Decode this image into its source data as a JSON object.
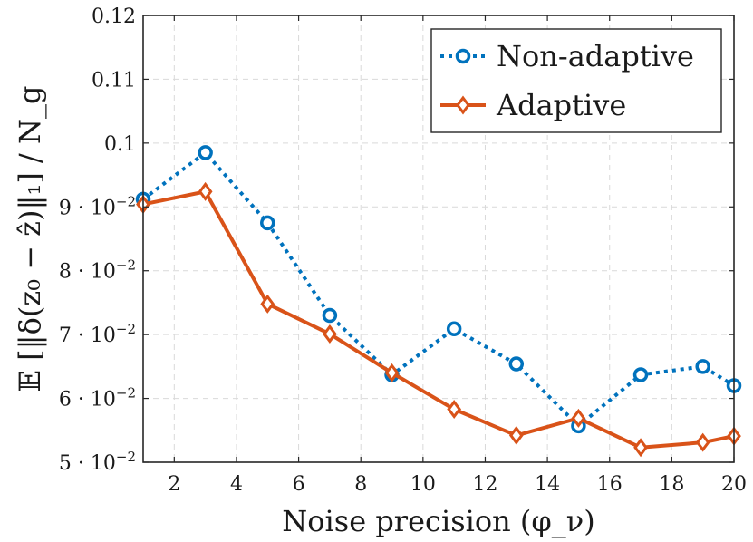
{
  "chart_data": {
    "type": "line",
    "title": "",
    "xlabel": "Noise precision (φ_ν)",
    "ylabel": "𝔼 [‖δ(z₀ − ẑ)‖₁] / N_g",
    "xlim": [
      1,
      20
    ],
    "ylim": [
      0.05,
      0.12
    ],
    "x_ticks": [
      2,
      4,
      6,
      8,
      10,
      12,
      14,
      16,
      18,
      20
    ],
    "y_ticks": [
      {
        "value": 0.05,
        "mantissa": "5",
        "exp": "−2"
      },
      {
        "value": 0.06,
        "mantissa": "6",
        "exp": "−2"
      },
      {
        "value": 0.07,
        "mantissa": "7",
        "exp": "−2"
      },
      {
        "value": 0.08,
        "mantissa": "8",
        "exp": "−2"
      },
      {
        "value": 0.09,
        "mantissa": "9",
        "exp": "−2"
      },
      {
        "value": 0.1,
        "label": "0.1"
      },
      {
        "value": 0.11,
        "label": "0.11"
      },
      {
        "value": 0.12,
        "label": "0.12"
      }
    ],
    "grid": true,
    "legend_position": "top-right",
    "series": [
      {
        "name": "Non-adaptive",
        "color": "#0072bd",
        "line_style": "dotted",
        "marker": "circle",
        "x": [
          1,
          3,
          5,
          7,
          9,
          11,
          13,
          15,
          17,
          19,
          20
        ],
        "values": [
          0.0912,
          0.0985,
          0.0875,
          0.073,
          0.0637,
          0.0709,
          0.0654,
          0.0557,
          0.0637,
          0.065,
          0.062
        ]
      },
      {
        "name": "Adaptive",
        "color": "#d95319",
        "line_style": "solid",
        "marker": "diamond",
        "x": [
          1,
          3,
          5,
          7,
          9,
          11,
          13,
          15,
          17,
          19,
          20
        ],
        "values": [
          0.0904,
          0.0924,
          0.0748,
          0.0701,
          0.064,
          0.0583,
          0.0542,
          0.0569,
          0.0523,
          0.0531,
          0.0541
        ]
      }
    ]
  }
}
